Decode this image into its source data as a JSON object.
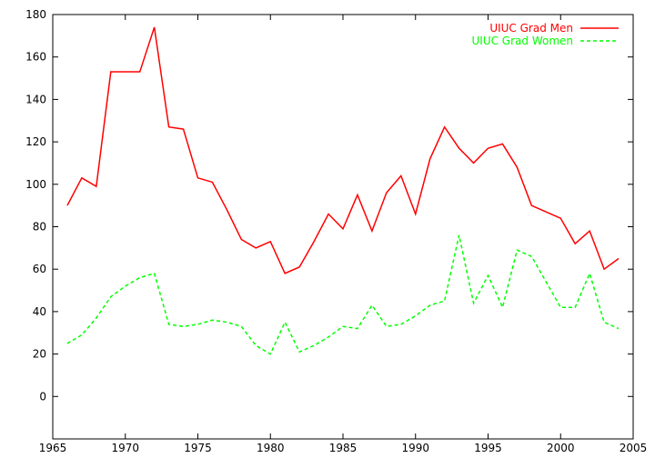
{
  "chart_data": {
    "type": "line",
    "title": "",
    "xlabel": "",
    "ylabel": "",
    "xlim": [
      1965,
      2005
    ],
    "ylim": [
      -20,
      180
    ],
    "xticks": [
      1965,
      1970,
      1975,
      1980,
      1985,
      1990,
      1995,
      2000,
      2005
    ],
    "yticks": [
      0,
      20,
      40,
      60,
      80,
      100,
      120,
      140,
      160,
      180
    ],
    "grid": false,
    "legend_position": "top-right",
    "x": [
      1966,
      1967,
      1968,
      1969,
      1970,
      1971,
      1972,
      1973,
      1974,
      1975,
      1976,
      1977,
      1978,
      1979,
      1980,
      1981,
      1982,
      1983,
      1984,
      1985,
      1986,
      1987,
      1988,
      1989,
      1990,
      1991,
      1992,
      1993,
      1994,
      1995,
      1996,
      1997,
      1998,
      1999,
      2000,
      2001,
      2002,
      2003,
      2004
    ],
    "series": [
      {
        "name": "UIUC Grad Men",
        "color": "#ff0000",
        "style": "solid",
        "values": [
          90,
          103,
          99,
          153,
          153,
          153,
          174,
          127,
          126,
          103,
          101,
          88,
          74,
          70,
          73,
          58,
          61,
          73,
          86,
          79,
          95,
          78,
          96,
          104,
          86,
          112,
          127,
          117,
          110,
          117,
          119,
          108,
          90,
          87,
          84,
          72,
          78,
          60,
          65
        ]
      },
      {
        "name": "UIUC Grad Women",
        "color": "#00ff00",
        "style": "dashed",
        "values": [
          25,
          29,
          37,
          47,
          52,
          56,
          58,
          34,
          33,
          34,
          36,
          35,
          33,
          24,
          20,
          35,
          21,
          24,
          28,
          33,
          32,
          43,
          33,
          34,
          38,
          43,
          45,
          76,
          44,
          57,
          42,
          69,
          66,
          54,
          42,
          42,
          58,
          35,
          32
        ]
      }
    ]
  }
}
